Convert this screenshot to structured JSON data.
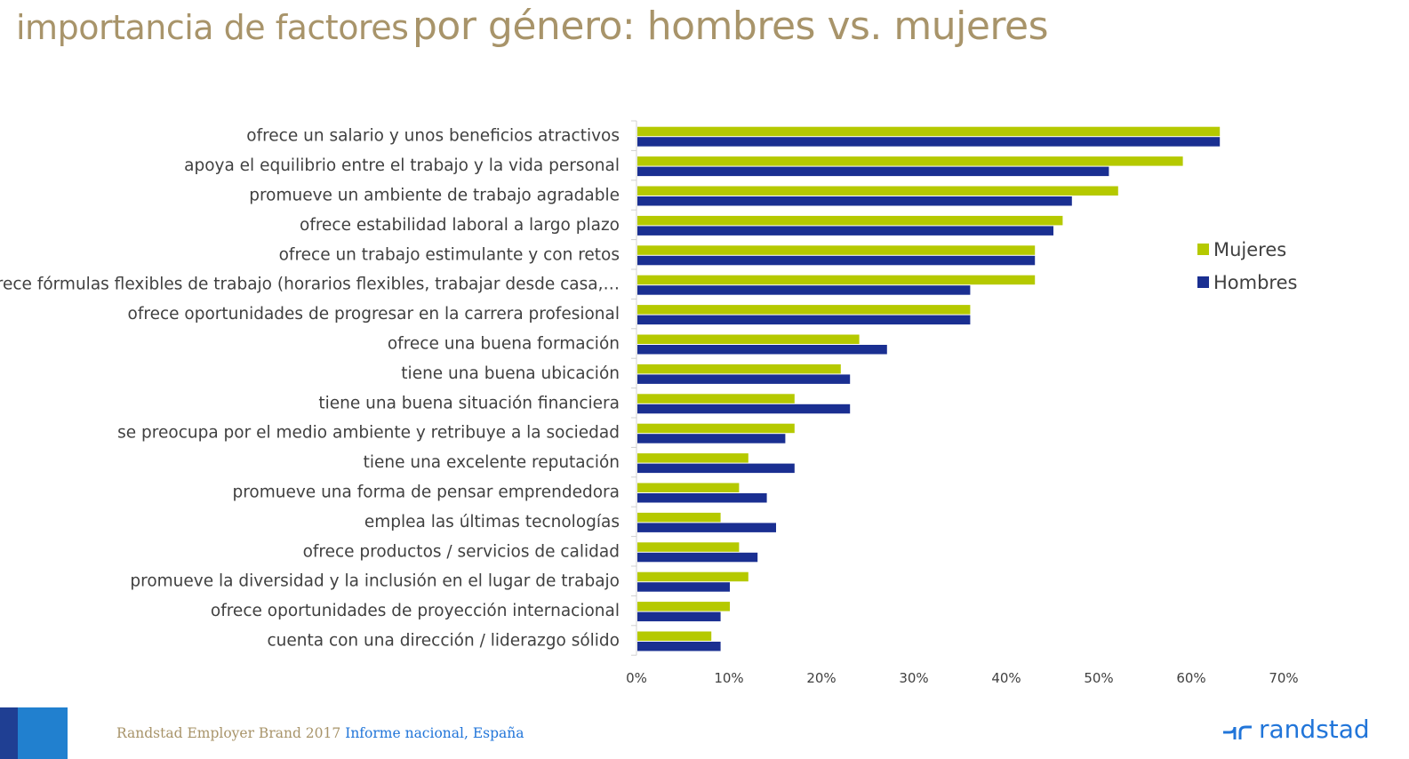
{
  "title": {
    "part1": "importancia de factores",
    "part2": "por género: hombres vs. mujeres"
  },
  "colors": {
    "mujeres": "#b5c900",
    "hombres": "#1a2f91",
    "title": "#a8946a",
    "footer_link": "#2175d9"
  },
  "chart_data": {
    "type": "bar",
    "orientation": "horizontal",
    "categories": [
      "ofrece un salario y unos beneficios atractivos",
      "apoya el equilibrio entre el trabajo y la vida personal",
      "promueve un ambiente de trabajo agradable",
      "ofrece estabilidad laboral a largo plazo",
      "ofrece un trabajo estimulante y con retos",
      "ofrece fórmulas flexibles de trabajo (horarios flexibles, trabajar desde casa,…",
      "ofrece oportunidades de progresar en la carrera profesional",
      "ofrece una buena formación",
      "tiene una buena ubicación",
      "tiene una buena situación financiera",
      "se preocupa por el medio ambiente y retribuye a la sociedad",
      "tiene una excelente reputación",
      "promueve una forma de pensar emprendedora",
      "emplea las últimas tecnologías",
      "ofrece productos / servicios de calidad",
      "promueve la diversidad y la inclusión en el lugar de trabajo",
      "ofrece oportunidades de proyección internacional",
      "cuenta con una dirección / liderazgo sólido"
    ],
    "series": [
      {
        "name": "Mujeres",
        "color": "#b5c900",
        "values": [
          63,
          59,
          52,
          46,
          43,
          43,
          36,
          24,
          22,
          17,
          17,
          12,
          11,
          9,
          11,
          12,
          10,
          8
        ]
      },
      {
        "name": "Hombres",
        "color": "#1a2f91",
        "values": [
          63,
          51,
          47,
          45,
          43,
          36,
          36,
          27,
          23,
          23,
          16,
          17,
          14,
          15,
          13,
          10,
          9,
          9
        ]
      }
    ],
    "xlim": [
      0,
      70
    ],
    "xticks": [
      0,
      10,
      20,
      30,
      40,
      50,
      60,
      70
    ],
    "tick_labels": [
      "0%",
      "10%",
      "20%",
      "30%",
      "40%",
      "50%",
      "60%",
      "70%"
    ],
    "legend_position": "right",
    "grid": false
  },
  "footer": {
    "part1": "Randstad Employer Brand 2017",
    "part2": "Informe nacional, España"
  },
  "logo": {
    "word": "randstad"
  }
}
